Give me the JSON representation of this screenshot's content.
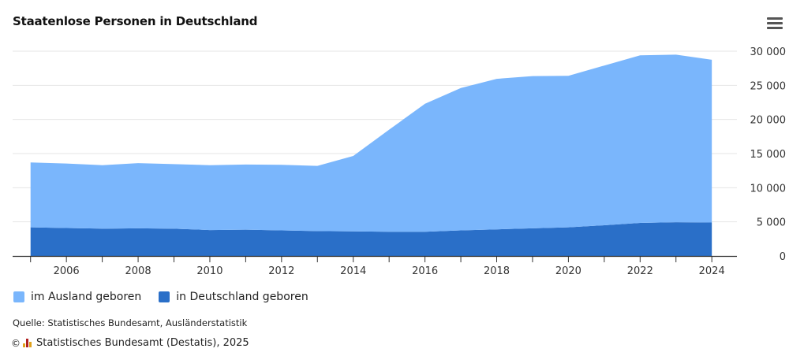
{
  "title": "Staatenlose Personen in Deutschland",
  "menu_icon": "hamburger-menu-icon",
  "source": "Quelle: Statistisches Bundesamt, Ausländerstatistik",
  "credit": {
    "copyright": "©",
    "logo_icon": "destatis-logo-icon",
    "text": "Statistisches Bundesamt (Destatis), 2025"
  },
  "colors": {
    "ausland": "#7ab6fc",
    "deutschland": "#2a6fc8",
    "grid": "#e6e6e6",
    "axis": "#333333"
  },
  "chart_data": {
    "type": "area",
    "stacked": true,
    "x": [
      2005,
      2006,
      2007,
      2008,
      2009,
      2010,
      2011,
      2012,
      2013,
      2014,
      2015,
      2016,
      2017,
      2018,
      2019,
      2020,
      2021,
      2022,
      2023,
      2024
    ],
    "xticks": [
      "2006",
      "2008",
      "2010",
      "2012",
      "2014",
      "2016",
      "2018",
      "2020",
      "2022",
      "2024"
    ],
    "yticks": [
      "0",
      "5 000",
      "10 000",
      "15 000",
      "20 000",
      "25 000",
      "30 000"
    ],
    "ylim": [
      0,
      30000
    ],
    "axis_side": "right",
    "grid": true,
    "legend_position": "bottom-left",
    "series": [
      {
        "name": "in Deutschland geboren",
        "color": "#2a6fc8",
        "values": [
          4200,
          4100,
          4000,
          4050,
          4000,
          3800,
          3850,
          3750,
          3650,
          3600,
          3550,
          3550,
          3750,
          3900,
          4050,
          4200,
          4500,
          4850,
          4950,
          4900
        ]
      },
      {
        "name": "im Ausland geboren",
        "color": "#7ab6fc",
        "values": [
          9500,
          9450,
          9300,
          9550,
          9450,
          9500,
          9550,
          9600,
          9550,
          11050,
          14950,
          18750,
          20850,
          22050,
          22300,
          22200,
          23400,
          24550,
          24550,
          23850
        ]
      }
    ],
    "legend": [
      "im Ausland geboren",
      "in Deutschland geboren"
    ]
  }
}
